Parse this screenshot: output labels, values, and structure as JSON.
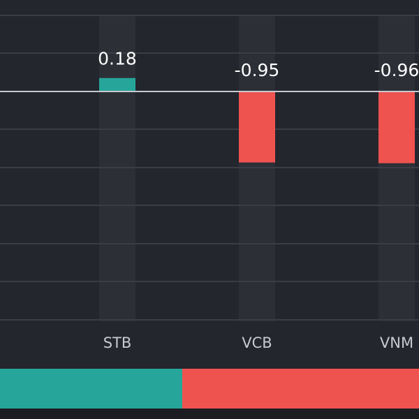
{
  "chart_data": {
    "type": "bar",
    "categories": [
      "STB",
      "VCB",
      "VNM"
    ],
    "values": [
      0.18,
      -0.95,
      -0.96
    ],
    "value_labels": [
      "0.18",
      "-0.95",
      "-0.96"
    ],
    "title": "",
    "xlabel": "",
    "ylabel": "",
    "ylim": [
      -3.05,
      1.05
    ],
    "grid": true,
    "legend": "none"
  },
  "colors": {
    "background": "#24262d",
    "gridline": "#3a3d45",
    "zero_line": "#c8cad0",
    "column_band": "#2c2f36",
    "positive": "#26a69a",
    "negative": "#ef5350",
    "value_label": "#ffffff",
    "category_label": "#c8cad0"
  },
  "breadth_bar": {
    "positive_fraction": 0.435,
    "negative_fraction": 0.565
  }
}
